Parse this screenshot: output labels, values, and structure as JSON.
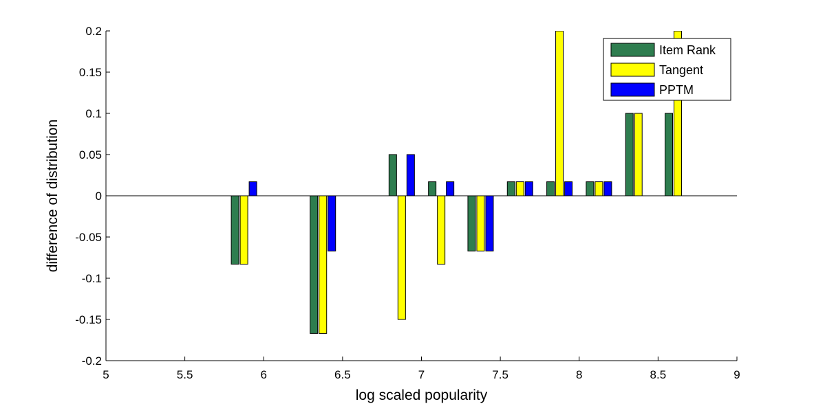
{
  "chart_data": {
    "type": "bar",
    "title": "",
    "xlabel": "log scaled popularity",
    "ylabel": "difference of distribution",
    "xlim": [
      5,
      9
    ],
    "ylim": [
      -0.2,
      0.2
    ],
    "xticks": [
      "5",
      "5.5",
      "6",
      "6.5",
      "7",
      "7.5",
      "8",
      "8.5",
      "9"
    ],
    "yticks": [
      "-0.2",
      "-0.15",
      "-0.1",
      "-0.05",
      "0",
      "0.05",
      "0.1",
      "0.15",
      "0.2"
    ],
    "grid": false,
    "legend_position": "top-right",
    "categories": [
      5.875,
      6.375,
      6.875,
      7.125,
      7.375,
      7.625,
      7.875,
      8.125,
      8.375,
      8.625
    ],
    "series": [
      {
        "name": "Item Rank",
        "color": "#2e7d4f",
        "values": [
          -0.083,
          -0.167,
          0.05,
          0.017,
          -0.067,
          0.017,
          0.017,
          0.017,
          0.1,
          0.1
        ]
      },
      {
        "name": "Tangent",
        "color": "#ffff00",
        "values": [
          -0.083,
          -0.167,
          -0.15,
          -0.083,
          -0.067,
          0.017,
          0.2,
          0.017,
          0.1,
          0.2
        ]
      },
      {
        "name": "PPTM",
        "color": "#0000ff",
        "values": [
          0.017,
          -0.067,
          0.05,
          0.017,
          -0.067,
          0.017,
          0.017,
          0.017,
          0,
          0
        ]
      }
    ]
  }
}
